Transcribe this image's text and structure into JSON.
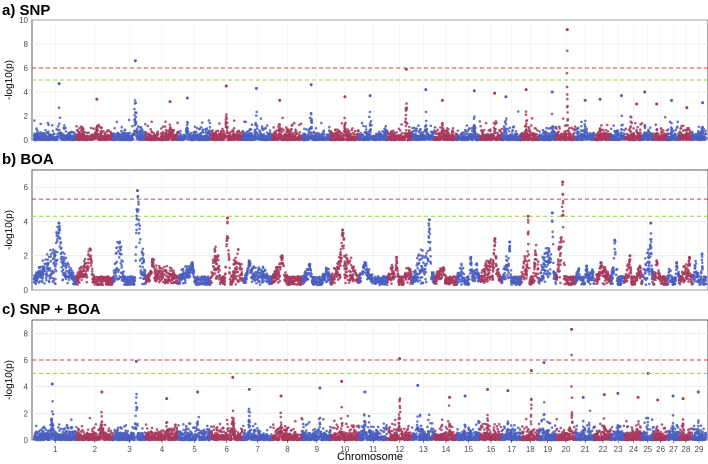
{
  "chart_data": [
    {
      "type": "scatter",
      "title": "a) SNP",
      "ylabel": "-log10(p)",
      "xlabel": "",
      "ylim": [
        0,
        10
      ],
      "yticks": [
        0,
        2,
        4,
        6,
        8,
        10
      ],
      "thresholds": [
        {
          "value": 6.0,
          "color": "#d43f3f",
          "style": "dashed"
        },
        {
          "value": 5.0,
          "color": "#8fd63a",
          "style": "dashed"
        }
      ],
      "series": [
        {
          "chromosomes": [
            "1",
            "3",
            "5",
            "7",
            "9",
            "11",
            "13",
            "15",
            "17",
            "19",
            "21",
            "23",
            "25",
            "27",
            "29"
          ],
          "color": "#4a5fbf"
        },
        {
          "chromosomes": [
            "2",
            "4",
            "6",
            "8",
            "10",
            "12",
            "14",
            "16",
            "18",
            "20",
            "22",
            "24",
            "26",
            "28"
          ],
          "color": "#a83a5e"
        }
      ],
      "peaks": [
        {
          "chromosome": "1",
          "max": 4.7
        },
        {
          "chromosome": "2",
          "max": 3.4
        },
        {
          "chromosome": "3",
          "max": 6.6
        },
        {
          "chromosome": "4",
          "max": 3.2
        },
        {
          "chromosome": "5",
          "max": 3.5
        },
        {
          "chromosome": "6",
          "max": 4.5
        },
        {
          "chromosome": "7",
          "max": 4.3
        },
        {
          "chromosome": "8",
          "max": 3.3
        },
        {
          "chromosome": "9",
          "max": 4.6
        },
        {
          "chromosome": "10",
          "max": 3.6
        },
        {
          "chromosome": "11",
          "max": 3.7
        },
        {
          "chromosome": "12",
          "max": 5.9
        },
        {
          "chromosome": "13",
          "max": 4.2
        },
        {
          "chromosome": "14",
          "max": 3.3
        },
        {
          "chromosome": "15",
          "max": 4.1
        },
        {
          "chromosome": "16",
          "max": 3.9
        },
        {
          "chromosome": "17",
          "max": 3.6
        },
        {
          "chromosome": "18",
          "max": 4.2
        },
        {
          "chromosome": "19",
          "max": 4.0
        },
        {
          "chromosome": "20",
          "max": 9.2
        },
        {
          "chromosome": "21",
          "max": 3.3
        },
        {
          "chromosome": "22",
          "max": 3.4
        },
        {
          "chromosome": "23",
          "max": 3.7
        },
        {
          "chromosome": "24",
          "max": 3.0
        },
        {
          "chromosome": "25",
          "max": 4.0
        },
        {
          "chromosome": "26",
          "max": 3.0
        },
        {
          "chromosome": "27",
          "max": 3.3
        },
        {
          "chromosome": "28",
          "max": 2.7
        },
        {
          "chromosome": "29",
          "max": 3.1
        }
      ]
    },
    {
      "type": "scatter",
      "title": "b) BOA",
      "ylabel": "-log10(p)",
      "xlabel": "",
      "ylim": [
        0,
        7
      ],
      "yticks": [
        0,
        2,
        4,
        6
      ],
      "thresholds": [
        {
          "value": 5.3,
          "color": "#d43f3f",
          "style": "dashed"
        },
        {
          "value": 4.3,
          "color": "#8fd63a",
          "style": "dashed"
        }
      ],
      "series": [
        {
          "chromosomes": [
            "1",
            "3",
            "5",
            "7",
            "9",
            "11",
            "13",
            "15",
            "17",
            "19",
            "21",
            "23",
            "25",
            "27",
            "29"
          ],
          "color": "#4a5fbf"
        },
        {
          "chromosomes": [
            "2",
            "4",
            "6",
            "8",
            "10",
            "12",
            "14",
            "16",
            "18",
            "20",
            "22",
            "24",
            "26",
            "28"
          ],
          "color": "#a83a5e"
        }
      ],
      "peaks": [
        {
          "chromosome": "1",
          "max": 3.9
        },
        {
          "chromosome": "2",
          "max": 2.4
        },
        {
          "chromosome": "3",
          "max": 5.8
        },
        {
          "chromosome": "4",
          "max": 1.8
        },
        {
          "chromosome": "5",
          "max": 1.6
        },
        {
          "chromosome": "6",
          "max": 4.2
        },
        {
          "chromosome": "7",
          "max": 1.7
        },
        {
          "chromosome": "8",
          "max": 2.0
        },
        {
          "chromosome": "9",
          "max": 1.5
        },
        {
          "chromosome": "10",
          "max": 3.5
        },
        {
          "chromosome": "11",
          "max": 1.6
        },
        {
          "chromosome": "12",
          "max": 1.9
        },
        {
          "chromosome": "13",
          "max": 4.1
        },
        {
          "chromosome": "14",
          "max": 1.3
        },
        {
          "chromosome": "15",
          "max": 1.9
        },
        {
          "chromosome": "16",
          "max": 3.0
        },
        {
          "chromosome": "17",
          "max": 2.8
        },
        {
          "chromosome": "18",
          "max": 4.3
        },
        {
          "chromosome": "19",
          "max": 4.5
        },
        {
          "chromosome": "20",
          "max": 6.3
        },
        {
          "chromosome": "21",
          "max": 1.4
        },
        {
          "chromosome": "22",
          "max": 1.6
        },
        {
          "chromosome": "23",
          "max": 2.9
        },
        {
          "chromosome": "24",
          "max": 2.0
        },
        {
          "chromosome": "25",
          "max": 3.9
        },
        {
          "chromosome": "26",
          "max": 1.7
        },
        {
          "chromosome": "27",
          "max": 1.6
        },
        {
          "chromosome": "28",
          "max": 1.9
        },
        {
          "chromosome": "29",
          "max": 2.1
        }
      ]
    },
    {
      "type": "scatter",
      "title": "c) SNP + BOA",
      "ylabel": "-log10(p)",
      "xlabel": "Chromosome",
      "ylim": [
        0,
        9
      ],
      "yticks": [
        0,
        2,
        4,
        6,
        8
      ],
      "thresholds": [
        {
          "value": 6.0,
          "color": "#d43f3f",
          "style": "dashed"
        },
        {
          "value": 5.0,
          "color": "#8fd63a",
          "style": "dashed"
        }
      ],
      "series": [
        {
          "chromosomes": [
            "1",
            "3",
            "5",
            "7",
            "9",
            "11",
            "13",
            "15",
            "17",
            "19",
            "21",
            "23",
            "25",
            "27",
            "29"
          ],
          "color": "#4a5fbf"
        },
        {
          "chromosomes": [
            "2",
            "4",
            "6",
            "8",
            "10",
            "12",
            "14",
            "16",
            "18",
            "20",
            "22",
            "24",
            "26",
            "28"
          ],
          "color": "#a83a5e"
        }
      ],
      "peaks": [
        {
          "chromosome": "1",
          "max": 4.2
        },
        {
          "chromosome": "2",
          "max": 3.6
        },
        {
          "chromosome": "3",
          "max": 5.9
        },
        {
          "chromosome": "4",
          "max": 3.1
        },
        {
          "chromosome": "5",
          "max": 3.6
        },
        {
          "chromosome": "6",
          "max": 4.7
        },
        {
          "chromosome": "7",
          "max": 3.8
        },
        {
          "chromosome": "8",
          "max": 3.3
        },
        {
          "chromosome": "9",
          "max": 3.9
        },
        {
          "chromosome": "10",
          "max": 4.4
        },
        {
          "chromosome": "11",
          "max": 3.6
        },
        {
          "chromosome": "12",
          "max": 6.1
        },
        {
          "chromosome": "13",
          "max": 4.1
        },
        {
          "chromosome": "14",
          "max": 3.2
        },
        {
          "chromosome": "15",
          "max": 3.3
        },
        {
          "chromosome": "16",
          "max": 3.8
        },
        {
          "chromosome": "17",
          "max": 3.7
        },
        {
          "chromosome": "18",
          "max": 5.2
        },
        {
          "chromosome": "19",
          "max": 5.8
        },
        {
          "chromosome": "20",
          "max": 8.3
        },
        {
          "chromosome": "21",
          "max": 3.2
        },
        {
          "chromosome": "22",
          "max": 3.4
        },
        {
          "chromosome": "23",
          "max": 3.5
        },
        {
          "chromosome": "24",
          "max": 3.2
        },
        {
          "chromosome": "25",
          "max": 5.0
        },
        {
          "chromosome": "26",
          "max": 3.0
        },
        {
          "chromosome": "27",
          "max": 3.3
        },
        {
          "chromosome": "28",
          "max": 3.1
        },
        {
          "chromosome": "29",
          "max": 3.6
        }
      ]
    }
  ],
  "x_axis": {
    "label": "Chromosome",
    "categories": [
      "1",
      "2",
      "3",
      "4",
      "5",
      "6",
      "7",
      "8",
      "9",
      "10",
      "11",
      "12",
      "13",
      "14",
      "15",
      "16",
      "17",
      "18",
      "19",
      "20",
      "21",
      "22",
      "23",
      "24",
      "25",
      "26",
      "27",
      "28",
      "29"
    ]
  }
}
